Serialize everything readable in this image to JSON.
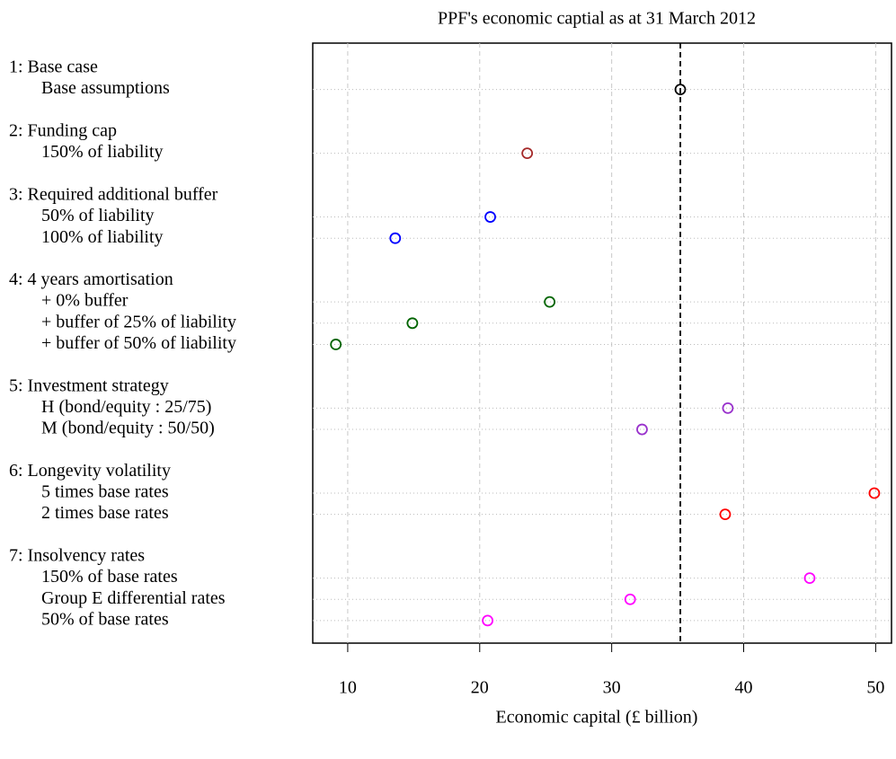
{
  "chart_data": {
    "type": "dot",
    "title": "PPF's economic captial as at 31 March 2012",
    "x_label": "Economic capital  (£ billion)",
    "xlim": [
      7.35,
      51.2
    ],
    "xticks": [
      10,
      20,
      30,
      40,
      50
    ],
    "grid": true,
    "groups": [
      {
        "label": "1: Base case",
        "color": "#000000",
        "items": [
          {
            "label": "Base assumptions",
            "value": 35.2
          }
        ]
      },
      {
        "label": "2: Funding cap",
        "color": "#a52a2a",
        "items": [
          {
            "label": "150% of liability",
            "value": 23.6
          }
        ]
      },
      {
        "label": "3: Required additional buffer",
        "color": "#0000ff",
        "items": [
          {
            "label": "50% of liability",
            "value": 20.8
          },
          {
            "label": "100% of liability",
            "value": 13.6
          }
        ]
      },
      {
        "label": "4: 4 years amortisation",
        "color": "#006400",
        "items": [
          {
            "label": "+ 0% buffer",
            "value": 25.3
          },
          {
            "label": "+ buffer of 25% of liability",
            "value": 14.9
          },
          {
            "label": "+ buffer of 50% of liability",
            "value": 9.1
          }
        ]
      },
      {
        "label": "5: Investment strategy",
        "color": "#9932cc",
        "items": [
          {
            "label": "H (bond/equity : 25/75)",
            "value": 38.8
          },
          {
            "label": "M (bond/equity : 50/50)",
            "value": 32.3
          }
        ]
      },
      {
        "label": "6: Longevity volatility",
        "color": "#ff0000",
        "items": [
          {
            "label": "5 times base rates",
            "value": 49.9
          },
          {
            "label": "2 times base rates",
            "value": 38.6
          }
        ]
      },
      {
        "label": "7: Insolvency rates",
        "color": "#ff00ff",
        "items": [
          {
            "label": "150% of base rates",
            "value": 45.0
          },
          {
            "label": "Group E differential rates",
            "value": 31.4
          },
          {
            "label": "50% of base rates",
            "value": 20.6
          }
        ]
      }
    ]
  }
}
